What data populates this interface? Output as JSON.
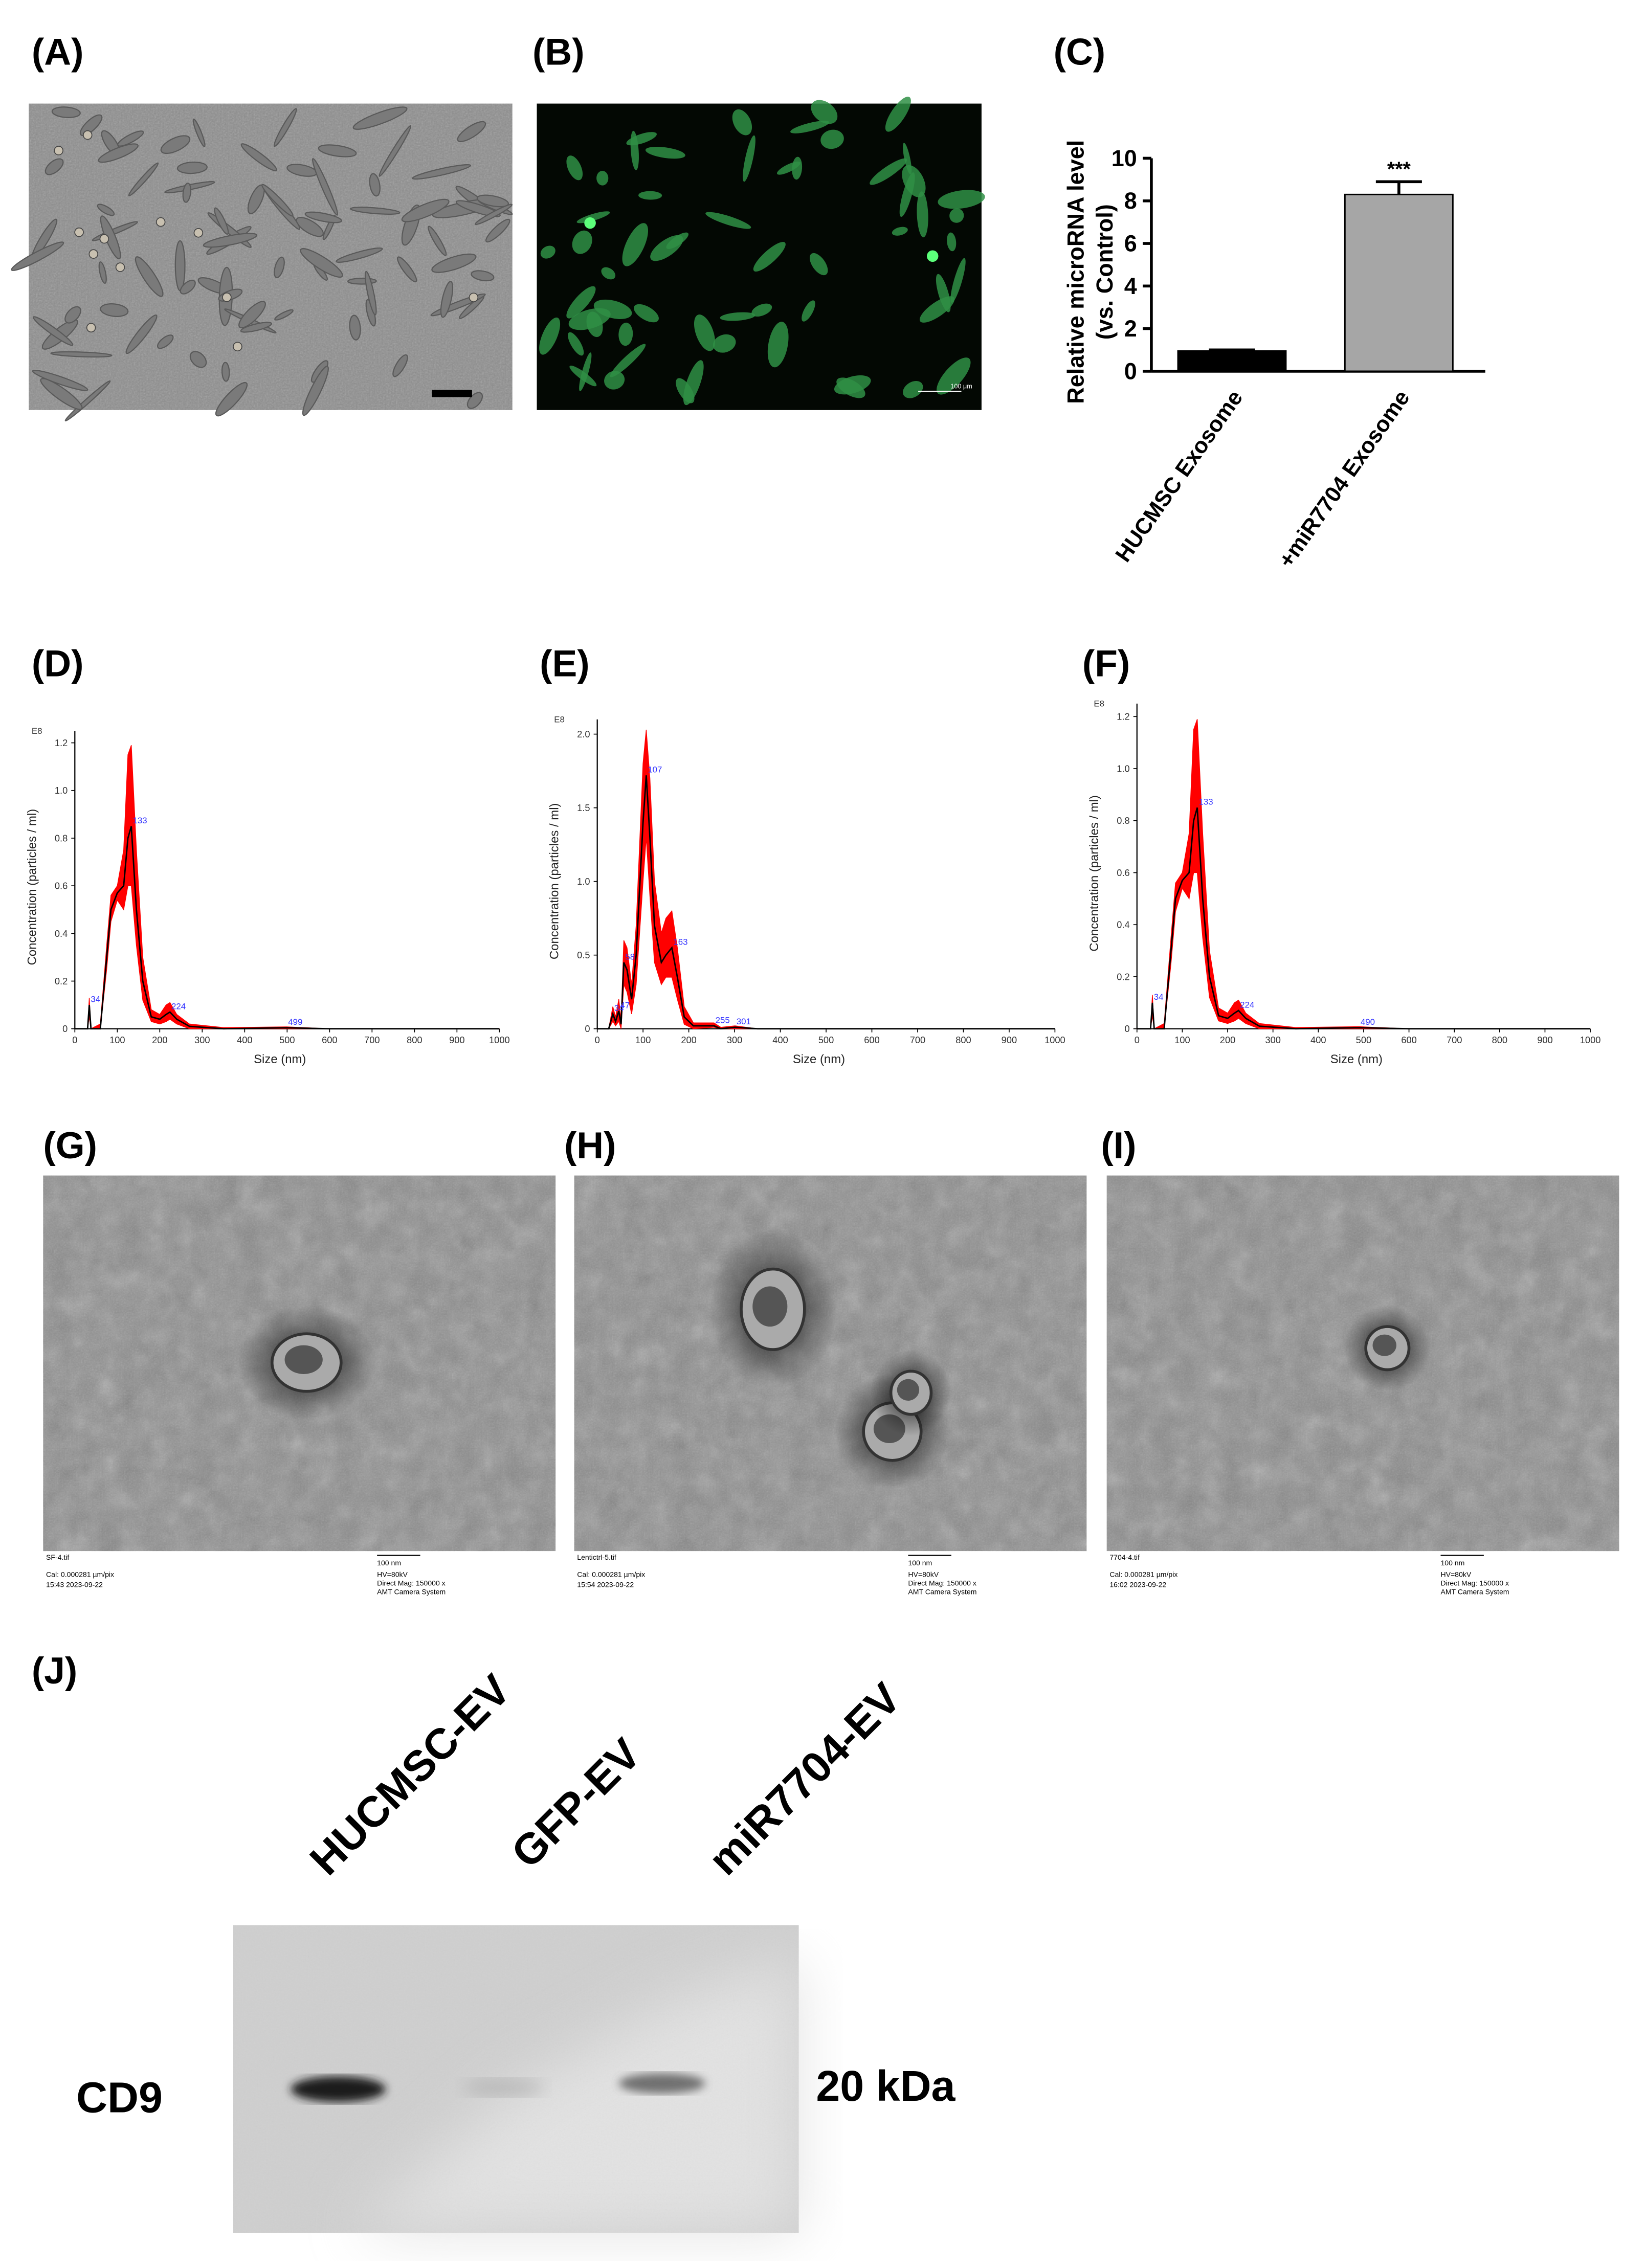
{
  "panel_labels": [
    "(A)",
    "(B)",
    "(C)",
    "(D)",
    "(E)",
    "(F)",
    "(G)",
    "(H)",
    "(I)",
    "(J)"
  ],
  "panel_b": {
    "scale_bar": "100 μm"
  },
  "chart_data": [
    {
      "type": "bar",
      "ylabel": [
        "Relative microRNA level",
        "(vs. Control)"
      ],
      "categories": [
        "HUCMSC  Exosome",
        "+miR7704 Exosome"
      ],
      "values": [
        0.95,
        8.3
      ],
      "errors": [
        0.05,
        0.6
      ],
      "colors": [
        "#000000",
        "#a6a6a6"
      ],
      "significance": [
        null,
        "***"
      ],
      "ylim": [
        0,
        10
      ],
      "yticks": [
        0,
        2,
        4,
        6,
        8,
        10
      ]
    },
    {
      "type": "line",
      "unit_label": "E8",
      "xlabel": "Size (nm)",
      "ylabel": "Concentration (particles / ml)",
      "x": [
        0,
        30,
        34,
        38,
        60,
        75,
        85,
        100,
        115,
        125,
        133,
        145,
        160,
        180,
        200,
        215,
        224,
        240,
        270,
        350,
        499,
        600,
        1000
      ],
      "series": [
        {
          "color": "#000000",
          "values": [
            0,
            0,
            0.1,
            0,
            0,
            0.3,
            0.5,
            0.57,
            0.6,
            0.8,
            0.85,
            0.5,
            0.2,
            0.05,
            0.04,
            0.06,
            0.07,
            0.04,
            0.01,
            0,
            0.004,
            0,
            0
          ]
        }
      ],
      "band": {
        "color": "#ff0000",
        "upper": [
          0,
          0,
          0.13,
          0,
          0.02,
          0.35,
          0.56,
          0.6,
          0.75,
          1.15,
          1.19,
          0.75,
          0.3,
          0.08,
          0.06,
          0.1,
          0.11,
          0.06,
          0.02,
          0.005,
          0.008,
          0,
          0
        ],
        "lower": [
          0,
          0,
          0.05,
          0,
          0,
          0.25,
          0.45,
          0.54,
          0.5,
          0.6,
          0.6,
          0.35,
          0.12,
          0.03,
          0.02,
          0.03,
          0.04,
          0.02,
          0,
          0,
          0,
          0,
          0
        ]
      },
      "peaks": [
        34,
        133,
        224,
        499
      ],
      "peak_color": "#3333ff",
      "xlim": [
        0,
        1000
      ],
      "xticks": [
        0,
        100,
        200,
        300,
        400,
        500,
        600,
        700,
        800,
        900,
        1000
      ],
      "ylim": [
        0,
        1.25
      ],
      "yticks": [
        0,
        0.2,
        0.4,
        0.6,
        0.8,
        {
          "value": 1.0,
          "label": "1.0"
        },
        1.2
      ]
    },
    {
      "type": "line",
      "unit_label": "E8",
      "xlabel": "Size (nm)",
      "ylabel": "Concentration (particles / ml)",
      "x": [
        0,
        25,
        34,
        40,
        47,
        52,
        58,
        65,
        75,
        85,
        100,
        107,
        115,
        125,
        140,
        150,
        163,
        175,
        190,
        210,
        255,
        270,
        301,
        350,
        1000
      ],
      "series": [
        {
          "color": "#000000",
          "values": [
            0,
            0,
            0.1,
            0.05,
            0.12,
            0.03,
            0.45,
            0.4,
            0.2,
            0.5,
            1.4,
            1.72,
            1.3,
            0.7,
            0.45,
            0.5,
            0.55,
            0.35,
            0.08,
            0.02,
            0.02,
            0,
            0.01,
            0,
            0
          ]
        }
      ],
      "band": {
        "color": "#ff0000",
        "upper": [
          0,
          0,
          0.15,
          0.08,
          0.2,
          0.06,
          0.6,
          0.55,
          0.3,
          0.7,
          1.8,
          2.03,
          1.7,
          1.0,
          0.65,
          0.75,
          0.8,
          0.55,
          0.15,
          0.04,
          0.04,
          0.01,
          0.02,
          0,
          0
        ],
        "lower": [
          0,
          0,
          0.05,
          0.02,
          0.05,
          0,
          0.3,
          0.25,
          0.1,
          0.3,
          1.0,
          1.3,
          0.9,
          0.45,
          0.3,
          0.35,
          0.35,
          0.2,
          0.03,
          0,
          0.01,
          0,
          0,
          0,
          0
        ]
      },
      "peaks": [
        34,
        47,
        58,
        107,
        163,
        255,
        301
      ],
      "peak_color": "#3333ff",
      "xlim": [
        0,
        1000
      ],
      "xticks": [
        0,
        100,
        200,
        300,
        400,
        500,
        600,
        700,
        800,
        900,
        1000
      ],
      "ylim": [
        0,
        2.1
      ],
      "yticks": [
        0,
        0.5,
        {
          "value": 1.0,
          "label": "1.0"
        },
        1.5,
        {
          "value": 2.0,
          "label": "2.0"
        }
      ]
    },
    {
      "type": "line",
      "unit_label": "E8",
      "xlabel": "Size (nm)",
      "ylabel": "Concentration (particles / ml)",
      "x": [
        0,
        30,
        34,
        38,
        60,
        75,
        85,
        100,
        115,
        125,
        133,
        145,
        160,
        180,
        200,
        215,
        224,
        240,
        270,
        350,
        490,
        600,
        1000
      ],
      "series": [
        {
          "color": "#000000",
          "values": [
            0,
            0,
            0.1,
            0,
            0,
            0.3,
            0.5,
            0.57,
            0.6,
            0.8,
            0.85,
            0.5,
            0.2,
            0.05,
            0.04,
            0.06,
            0.07,
            0.04,
            0.01,
            0,
            0.004,
            0,
            0
          ]
        }
      ],
      "band": {
        "color": "#ff0000",
        "upper": [
          0,
          0,
          0.13,
          0,
          0.02,
          0.35,
          0.56,
          0.6,
          0.75,
          1.15,
          1.19,
          0.75,
          0.3,
          0.08,
          0.06,
          0.1,
          0.11,
          0.06,
          0.02,
          0.005,
          0.008,
          0,
          0
        ],
        "lower": [
          0,
          0,
          0.05,
          0,
          0,
          0.25,
          0.45,
          0.54,
          0.5,
          0.6,
          0.6,
          0.35,
          0.12,
          0.03,
          0.02,
          0.03,
          0.04,
          0.02,
          0,
          0,
          0,
          0,
          0
        ]
      },
      "peaks": [
        34,
        133,
        224,
        490
      ],
      "peak_color": "#3333ff",
      "xlim": [
        0,
        1000
      ],
      "xticks": [
        0,
        100,
        200,
        300,
        400,
        500,
        600,
        700,
        800,
        900,
        1000
      ],
      "ylim": [
        0,
        1.25
      ],
      "yticks": [
        0,
        0.2,
        0.4,
        0.6,
        0.8,
        {
          "value": 1.0,
          "label": "1.0"
        },
        1.2
      ]
    }
  ],
  "tem": [
    {
      "file": "SF-4.tif",
      "calibration": "Cal: 0.000281 µm/pix",
      "timestamp": "15:43 2023-09-22",
      "scale_bar": "100 nm",
      "voltage": "HV=80kV",
      "magnification": "Direct Mag: 150000 x",
      "camera": "AMT Camera System"
    },
    {
      "file": "Lentictrl-5.tif",
      "calibration": "Cal: 0.000281 µm/pix",
      "timestamp": "15:54 2023-09-22",
      "scale_bar": "100 nm",
      "voltage": "HV=80kV",
      "magnification": "Direct Mag: 150000 x",
      "camera": "AMT Camera System"
    },
    {
      "file": "7704-4.tif",
      "calibration": "Cal: 0.000281 µm/pix",
      "timestamp": "16:02 2023-09-22",
      "scale_bar": "100 nm",
      "voltage": "HV=80kV",
      "magnification": "Direct Mag: 150000 x",
      "camera": "AMT Camera System"
    }
  ],
  "blot": {
    "lanes": [
      "HUCMSC-EV",
      "GFP-EV",
      "miR7704-EV"
    ],
    "protein": "CD9",
    "marker": "20 kDa"
  }
}
